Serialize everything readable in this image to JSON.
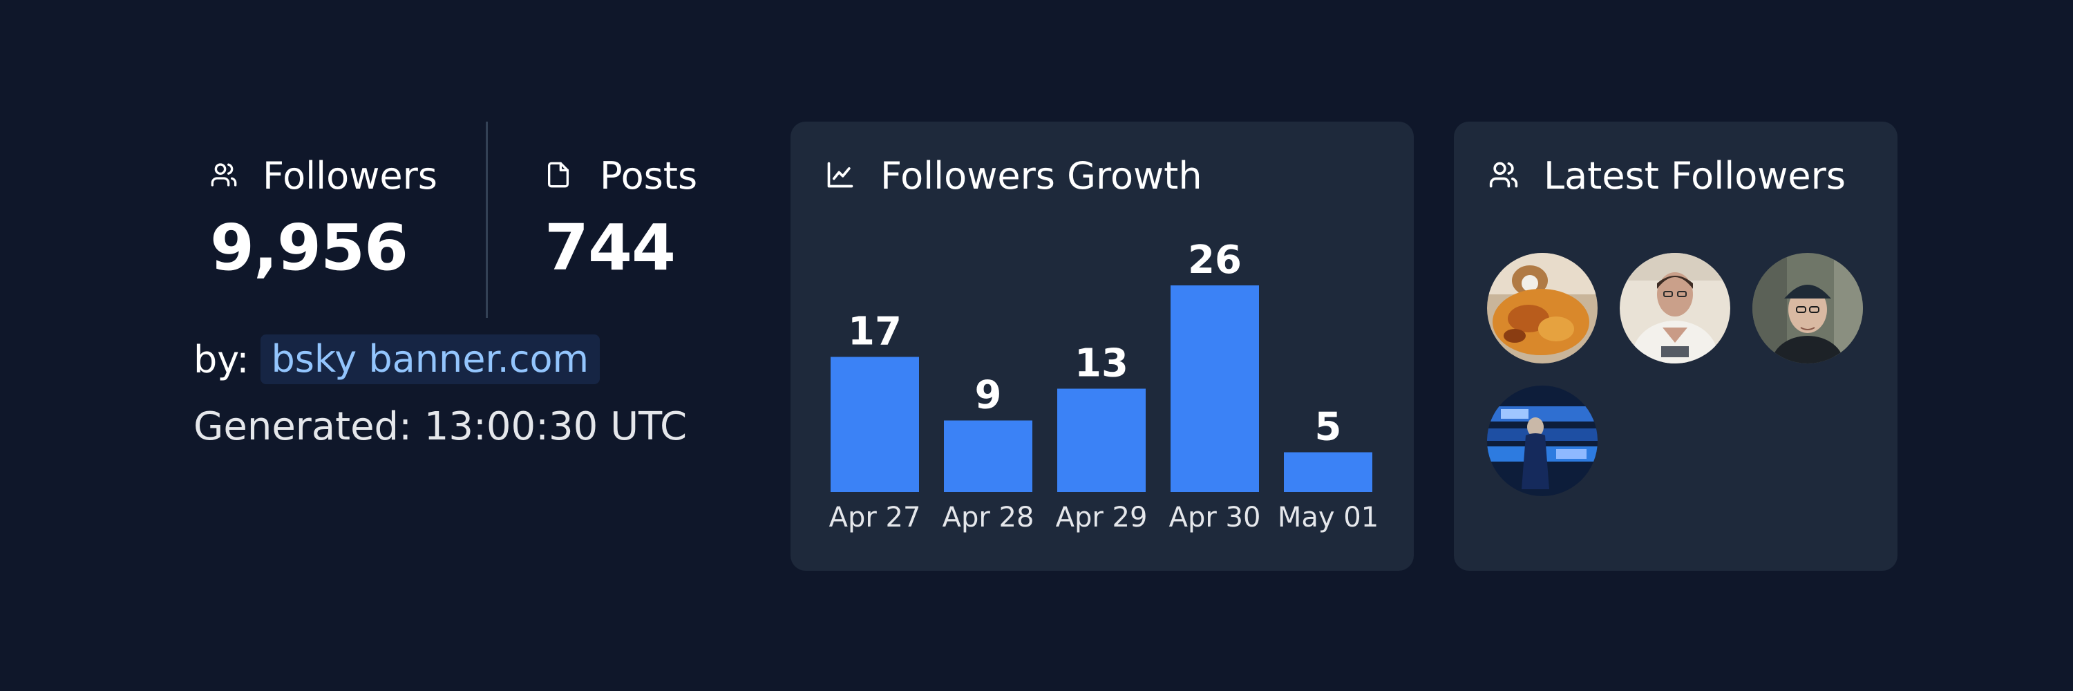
{
  "stats": {
    "followers": {
      "label": "Followers",
      "value": "9,956",
      "icon": "users-icon"
    },
    "posts": {
      "label": "Posts",
      "value": "744",
      "icon": "file-icon"
    }
  },
  "by": {
    "label": "by:",
    "link": "bsky banner.com"
  },
  "generated": "Generated: 13:00:30 UTC",
  "growth": {
    "title": "Followers Growth",
    "icon": "line-chart-icon"
  },
  "latest": {
    "title": "Latest Followers",
    "icon": "users-icon",
    "avatars": [
      "follower-avatar-1",
      "follower-avatar-2",
      "follower-avatar-3",
      "follower-avatar-4"
    ]
  },
  "colors": {
    "background": "#0f172a",
    "card": "#1e293b",
    "bar": "#3b82f6",
    "link": "#93c5fd"
  },
  "chart_data": {
    "type": "bar",
    "categories": [
      "Apr 27",
      "Apr 28",
      "Apr 29",
      "Apr 30",
      "May 01"
    ],
    "values": [
      17,
      9,
      13,
      26,
      5
    ],
    "title": "Followers Growth",
    "xlabel": "",
    "ylabel": "",
    "ylim": [
      0,
      26
    ],
    "grid": false
  }
}
